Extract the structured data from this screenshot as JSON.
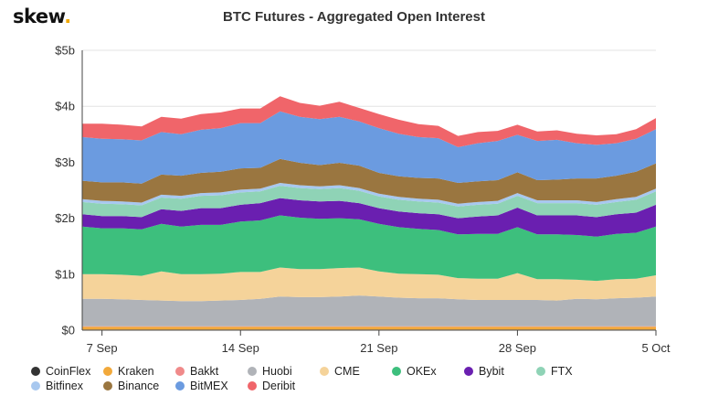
{
  "brand": {
    "name": "skew",
    "dot": "."
  },
  "chart_data": {
    "type": "area",
    "stacked": true,
    "title": "BTC Futures - Aggregated Open Interest",
    "xlabel": "",
    "ylabel": "",
    "unit": "USD billions",
    "ylim": [
      0,
      5
    ],
    "y_ticks": [
      0,
      1,
      2,
      3,
      4,
      5
    ],
    "y_tick_labels": [
      "$0",
      "$1b",
      "$2b",
      "$3b",
      "$4b",
      "$5b"
    ],
    "x_tick_labels": [
      "7 Sep",
      "14 Sep",
      "21 Sep",
      "28 Sep",
      "5 Oct"
    ],
    "x_tick_dates": [
      "2020-09-07",
      "2020-09-14",
      "2020-09-21",
      "2020-09-28",
      "2020-10-05"
    ],
    "x": [
      "2020-09-06",
      "2020-09-07",
      "2020-09-08",
      "2020-09-09",
      "2020-09-10",
      "2020-09-11",
      "2020-09-12",
      "2020-09-13",
      "2020-09-14",
      "2020-09-15",
      "2020-09-16",
      "2020-09-17",
      "2020-09-18",
      "2020-09-19",
      "2020-09-20",
      "2020-09-21",
      "2020-09-22",
      "2020-09-23",
      "2020-09-24",
      "2020-09-25",
      "2020-09-26",
      "2020-09-27",
      "2020-09-28",
      "2020-09-29",
      "2020-09-30",
      "2020-10-01",
      "2020-10-02",
      "2020-10-03",
      "2020-10-04",
      "2020-10-05"
    ],
    "grid": true,
    "legend_position": "bottom",
    "series": [
      {
        "name": "CoinFlex",
        "color": "#333333",
        "values": [
          0.01,
          0.01,
          0.01,
          0.01,
          0.01,
          0.01,
          0.01,
          0.01,
          0.01,
          0.01,
          0.01,
          0.01,
          0.01,
          0.01,
          0.01,
          0.01,
          0.01,
          0.01,
          0.01,
          0.01,
          0.01,
          0.01,
          0.01,
          0.01,
          0.01,
          0.01,
          0.01,
          0.01,
          0.01,
          0.01
        ]
      },
      {
        "name": "Kraken",
        "color": "#f2a93b",
        "values": [
          0.05,
          0.05,
          0.05,
          0.05,
          0.05,
          0.05,
          0.05,
          0.05,
          0.05,
          0.05,
          0.05,
          0.05,
          0.05,
          0.05,
          0.05,
          0.05,
          0.05,
          0.05,
          0.05,
          0.05,
          0.05,
          0.05,
          0.05,
          0.05,
          0.05,
          0.05,
          0.05,
          0.05,
          0.05,
          0.05
        ]
      },
      {
        "name": "Bakkt",
        "color": "#f08a8a",
        "values": [
          0.01,
          0.01,
          0.01,
          0.01,
          0.01,
          0.01,
          0.01,
          0.01,
          0.01,
          0.01,
          0.01,
          0.01,
          0.01,
          0.01,
          0.01,
          0.01,
          0.01,
          0.01,
          0.01,
          0.01,
          0.01,
          0.01,
          0.01,
          0.01,
          0.01,
          0.01,
          0.01,
          0.01,
          0.01,
          0.01
        ]
      },
      {
        "name": "Huobi",
        "color": "#b0b3b8",
        "values": [
          0.49,
          0.49,
          0.48,
          0.47,
          0.46,
          0.45,
          0.45,
          0.46,
          0.47,
          0.49,
          0.53,
          0.52,
          0.52,
          0.53,
          0.55,
          0.53,
          0.51,
          0.5,
          0.5,
          0.48,
          0.47,
          0.47,
          0.47,
          0.47,
          0.46,
          0.49,
          0.48,
          0.5,
          0.51,
          0.53
        ]
      },
      {
        "name": "CME",
        "color": "#f5d39a",
        "values": [
          0.44,
          0.44,
          0.44,
          0.43,
          0.52,
          0.48,
          0.48,
          0.48,
          0.5,
          0.48,
          0.52,
          0.5,
          0.5,
          0.51,
          0.5,
          0.45,
          0.43,
          0.43,
          0.42,
          0.38,
          0.38,
          0.38,
          0.48,
          0.37,
          0.38,
          0.34,
          0.33,
          0.34,
          0.34,
          0.38
        ]
      },
      {
        "name": "OKEx",
        "color": "#3dbf7d",
        "values": [
          0.85,
          0.82,
          0.83,
          0.83,
          0.85,
          0.85,
          0.88,
          0.87,
          0.9,
          0.92,
          0.93,
          0.92,
          0.9,
          0.89,
          0.86,
          0.85,
          0.83,
          0.81,
          0.8,
          0.78,
          0.8,
          0.8,
          0.82,
          0.8,
          0.8,
          0.8,
          0.79,
          0.81,
          0.82,
          0.87
        ]
      },
      {
        "name": "Bybit",
        "color": "#6a1fb0",
        "values": [
          0.22,
          0.22,
          0.22,
          0.22,
          0.26,
          0.28,
          0.3,
          0.3,
          0.3,
          0.31,
          0.31,
          0.31,
          0.31,
          0.31,
          0.29,
          0.28,
          0.28,
          0.28,
          0.28,
          0.29,
          0.31,
          0.33,
          0.35,
          0.34,
          0.34,
          0.35,
          0.35,
          0.35,
          0.36,
          0.39
        ]
      },
      {
        "name": "FTX",
        "color": "#8fd3b6",
        "values": [
          0.22,
          0.22,
          0.21,
          0.21,
          0.21,
          0.22,
          0.22,
          0.23,
          0.22,
          0.21,
          0.22,
          0.22,
          0.22,
          0.23,
          0.22,
          0.21,
          0.21,
          0.21,
          0.21,
          0.21,
          0.21,
          0.21,
          0.21,
          0.22,
          0.22,
          0.22,
          0.22,
          0.22,
          0.23,
          0.24
        ]
      },
      {
        "name": "Bitfinex",
        "color": "#a8c8ef",
        "values": [
          0.05,
          0.05,
          0.05,
          0.05,
          0.05,
          0.05,
          0.05,
          0.05,
          0.05,
          0.05,
          0.05,
          0.05,
          0.05,
          0.05,
          0.05,
          0.05,
          0.05,
          0.05,
          0.05,
          0.05,
          0.05,
          0.05,
          0.05,
          0.05,
          0.05,
          0.05,
          0.05,
          0.05,
          0.05,
          0.05
        ]
      },
      {
        "name": "Binance",
        "color": "#9a7640",
        "values": [
          0.33,
          0.33,
          0.34,
          0.34,
          0.36,
          0.36,
          0.36,
          0.37,
          0.38,
          0.37,
          0.43,
          0.4,
          0.38,
          0.4,
          0.4,
          0.37,
          0.37,
          0.37,
          0.38,
          0.37,
          0.37,
          0.37,
          0.37,
          0.36,
          0.37,
          0.39,
          0.42,
          0.42,
          0.45,
          0.45
        ]
      },
      {
        "name": "BitMEX",
        "color": "#6b9be0",
        "values": [
          0.78,
          0.78,
          0.77,
          0.77,
          0.76,
          0.74,
          0.77,
          0.78,
          0.81,
          0.8,
          0.85,
          0.82,
          0.82,
          0.82,
          0.79,
          0.8,
          0.76,
          0.73,
          0.72,
          0.64,
          0.68,
          0.7,
          0.67,
          0.7,
          0.71,
          0.63,
          0.6,
          0.58,
          0.59,
          0.61
        ]
      },
      {
        "name": "Deribit",
        "color": "#f0656a",
        "values": [
          0.24,
          0.27,
          0.26,
          0.25,
          0.27,
          0.28,
          0.28,
          0.28,
          0.26,
          0.26,
          0.27,
          0.25,
          0.24,
          0.27,
          0.24,
          0.25,
          0.25,
          0.23,
          0.22,
          0.2,
          0.2,
          0.18,
          0.18,
          0.17,
          0.17,
          0.17,
          0.17,
          0.16,
          0.17,
          0.2
        ]
      }
    ]
  }
}
